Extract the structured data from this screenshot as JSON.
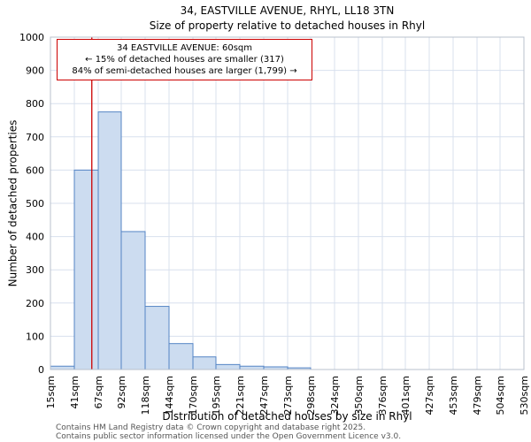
{
  "chart_data": {
    "type": "bar",
    "title": "34, EASTVILLE AVENUE, RHYL, LL18 3TN",
    "subtitle": "Size of property relative to detached houses in Rhyl",
    "xlabel": "Distribution of detached houses by size in Rhyl",
    "ylabel": "Number of detached properties",
    "x_unit": "sqm",
    "bin_edges": [
      15,
      41,
      67,
      92,
      118,
      144,
      170,
      195,
      221,
      247,
      273,
      298,
      324,
      350,
      376,
      401,
      427,
      453,
      479,
      504,
      530
    ],
    "x_tick_labels": [
      "15sqm",
      "41sqm",
      "67sqm",
      "92sqm",
      "118sqm",
      "144sqm",
      "170sqm",
      "195sqm",
      "221sqm",
      "247sqm",
      "273sqm",
      "298sqm",
      "324sqm",
      "350sqm",
      "376sqm",
      "401sqm",
      "427sqm",
      "453sqm",
      "479sqm",
      "504sqm",
      "530sqm"
    ],
    "values": [
      10,
      600,
      775,
      415,
      190,
      78,
      38,
      15,
      10,
      8,
      5,
      0,
      0,
      0,
      0,
      0,
      0,
      0,
      0,
      0
    ],
    "ylim": [
      0,
      1000
    ],
    "ytick_step": 100,
    "grid": true,
    "legend": "none",
    "marker": {
      "value": 60,
      "label": "34 EASTVILLE AVENUE: 60sqm"
    },
    "colors": {
      "bar_fill": "#ccdcf0",
      "bar_stroke": "#5585c5",
      "grid": "#d8e0ee",
      "plot_border": "#b8c0cc",
      "marker": "#cc0000",
      "plot_bg": "#ffffff"
    }
  },
  "annotation": {
    "lines": [
      "34 EASTVILLE AVENUE: 60sqm",
      "← 15% of detached houses are smaller (317)",
      "84% of semi-detached houses are larger (1,799) →"
    ]
  },
  "footer": {
    "line1": "Contains HM Land Registry data © Crown copyright and database right 2025.",
    "line2": "Contains public sector information licensed under the Open Government Licence v3.0."
  }
}
